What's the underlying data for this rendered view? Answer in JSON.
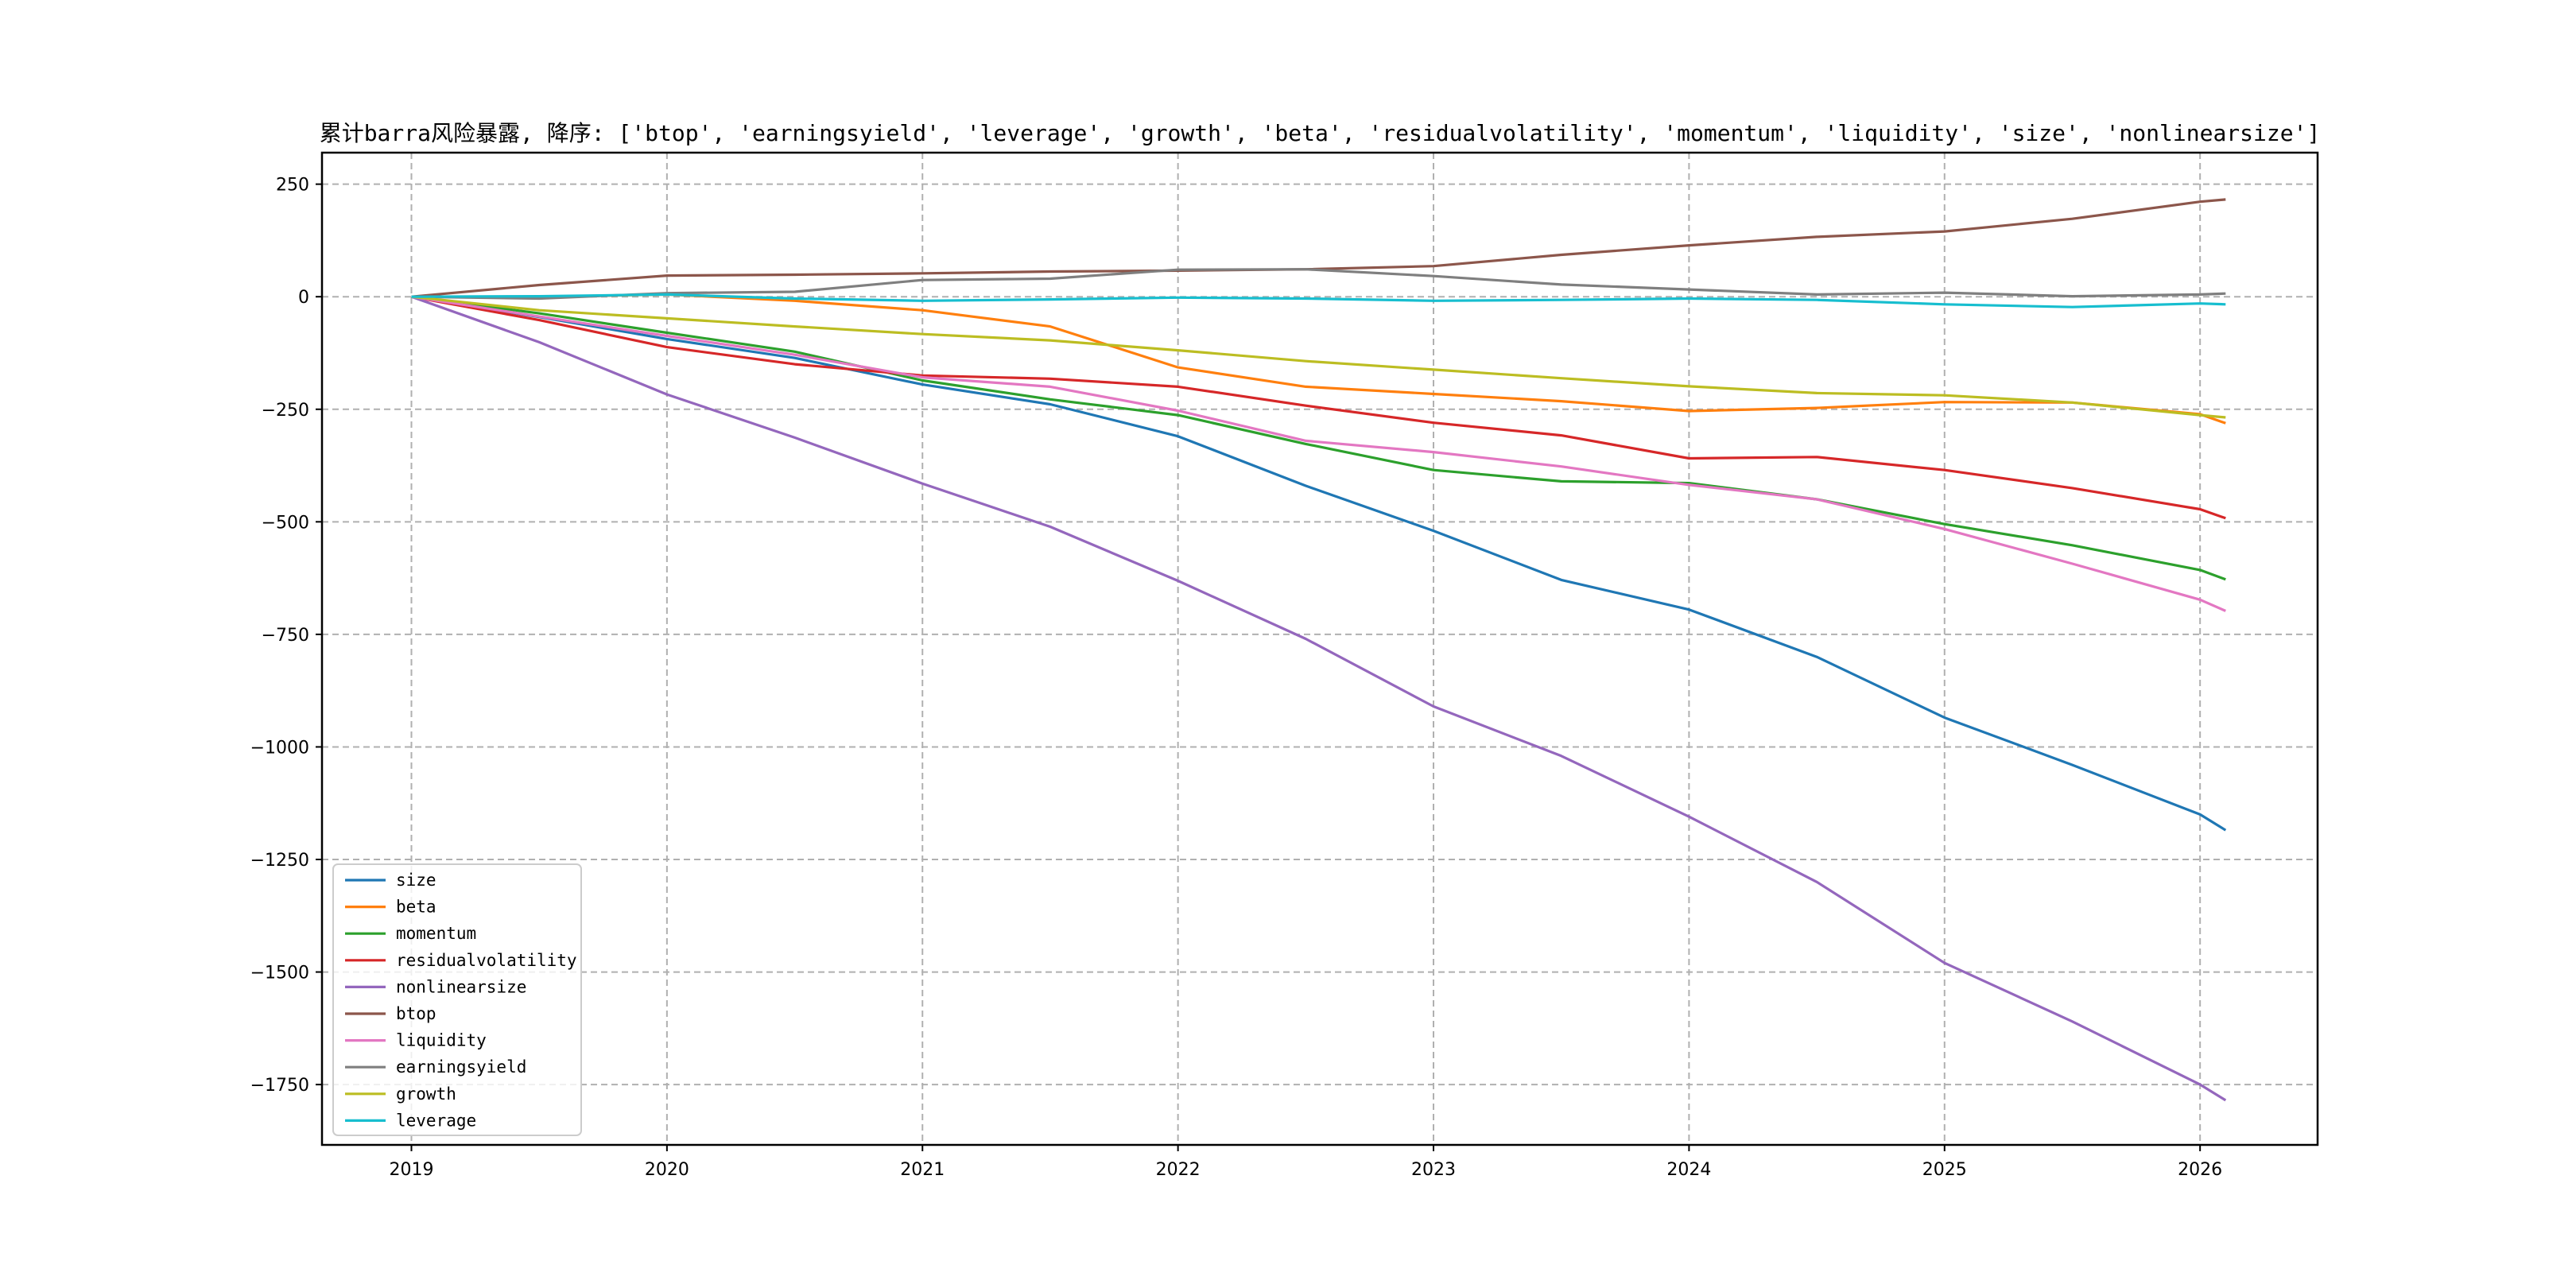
{
  "chart_data": {
    "type": "line",
    "title": "累计barra风险暴露, 降序: ['btop', 'earningsyield', 'leverage', 'growth', 'beta', 'residualvolatility', 'momentum', 'liquidity', 'size', 'nonlinearsize']",
    "xlabel": "",
    "ylabel": "",
    "xlim": [
      2018.65,
      2026.46
    ],
    "ylim": [
      -1884,
      320
    ],
    "xticks": [
      2019,
      2020,
      2021,
      2022,
      2023,
      2024,
      2025,
      2026
    ],
    "xtick_labels": [
      "2019",
      "2020",
      "2021",
      "2022",
      "2023",
      "2024",
      "2025",
      "2026"
    ],
    "yticks": [
      250,
      0,
      -250,
      -500,
      -750,
      -1000,
      -1250,
      -1500,
      -1750
    ],
    "ytick_labels": [
      "250",
      "0",
      "−250",
      "−500",
      "−750",
      "−1000",
      "−1250",
      "−1500",
      "−1750"
    ],
    "grid": true,
    "legend_position": "lower-left",
    "x": [
      2019,
      2019.5,
      2020,
      2020.5,
      2021,
      2021.5,
      2022,
      2022.5,
      2023,
      2023.5,
      2024,
      2024.5,
      2025,
      2025.5,
      2026,
      2026.1
    ],
    "series": [
      {
        "name": "size",
        "color": "#1f77b4",
        "values": [
          0,
          -45,
          -94,
          -136,
          -195,
          -239,
          -310,
          -420,
          -520,
          -629,
          -695,
          -800,
          -935,
          -1040,
          -1150,
          -1185
        ]
      },
      {
        "name": "beta",
        "color": "#ff7f0e",
        "values": [
          0,
          0,
          5,
          -9,
          -30,
          -66,
          -157,
          -200,
          -216,
          -232,
          -254,
          -247,
          -234,
          -235,
          -261,
          -281
        ]
      },
      {
        "name": "momentum",
        "color": "#2ca02c",
        "values": [
          0,
          -37,
          -80,
          -122,
          -186,
          -228,
          -263,
          -327,
          -385,
          -410,
          -414,
          -450,
          -505,
          -552,
          -607,
          -628
        ]
      },
      {
        "name": "residualvolatility",
        "color": "#d62728",
        "values": [
          0,
          -52,
          -112,
          -150,
          -175,
          -182,
          -200,
          -242,
          -280,
          -308,
          -359,
          -356,
          -385,
          -425,
          -472,
          -492
        ]
      },
      {
        "name": "nonlinearsize",
        "color": "#9467bd",
        "values": [
          0,
          -101,
          -217,
          -313,
          -415,
          -511,
          -631,
          -760,
          -910,
          -1020,
          -1155,
          -1300,
          -1480,
          -1610,
          -1750,
          -1785
        ]
      },
      {
        "name": "btop",
        "color": "#8c564b",
        "values": [
          0,
          26,
          47,
          49,
          52,
          56,
          58,
          61,
          68,
          93,
          114,
          133,
          145,
          173,
          211,
          216
        ]
      },
      {
        "name": "liquidity",
        "color": "#e377c2",
        "values": [
          0,
          -44,
          -87,
          -129,
          -179,
          -200,
          -253,
          -320,
          -345,
          -377,
          -418,
          -450,
          -516,
          -593,
          -673,
          -698
        ]
      },
      {
        "name": "earningsyield",
        "color": "#7f7f7f",
        "values": [
          0,
          -4,
          8,
          11,
          37,
          40,
          60,
          61,
          46,
          27,
          16,
          5,
          9,
          1,
          5,
          7
        ]
      },
      {
        "name": "growth",
        "color": "#bcbd22",
        "values": [
          0,
          -30,
          -48,
          -66,
          -83,
          -97,
          -119,
          -143,
          -162,
          -181,
          -199,
          -214,
          -219,
          -235,
          -263,
          -268
        ]
      },
      {
        "name": "leverage",
        "color": "#17becf",
        "values": [
          0,
          1,
          5,
          -4,
          -9,
          -6,
          -2,
          -4,
          -9,
          -7,
          -4,
          -7,
          -17,
          -23,
          -15,
          -17
        ]
      }
    ]
  }
}
